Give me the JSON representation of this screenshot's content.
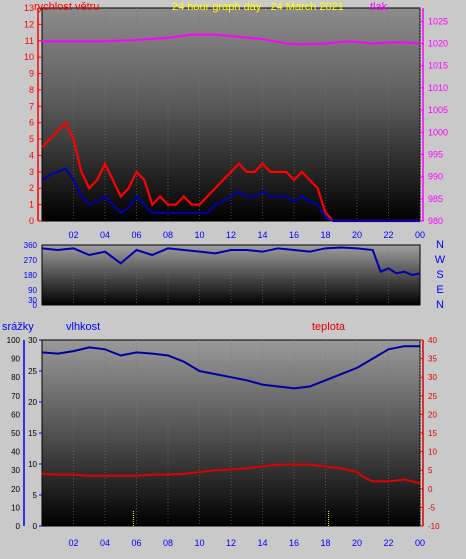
{
  "colors": {
    "wind": "#ff0000",
    "gust_line": "#ff0000",
    "pressure": "#ff00ff",
    "direction": "#0000b0",
    "humidity": "#0000a0",
    "temperature": "#e00000",
    "rain": "#0000ff",
    "title": "#ffff00",
    "label_blue": "#0000ff"
  },
  "chart_data": [
    {
      "type": "line",
      "panel": "wind-pressure",
      "title": "24 hour graph day : 24 March 2021",
      "x_ticks": [
        "02",
        "04",
        "06",
        "08",
        "10",
        "12",
        "14",
        "16",
        "18",
        "20",
        "22",
        "00"
      ],
      "x_range": [
        0,
        24
      ],
      "left_axis": {
        "label": "rychlost větru",
        "range": [
          0,
          13
        ],
        "ticks": [
          "0",
          "1",
          "2",
          "3",
          "4",
          "5",
          "6",
          "7",
          "8",
          "9",
          "10",
          "11",
          "12",
          "13"
        ]
      },
      "right_axis": {
        "label": "tlak",
        "range": [
          980,
          1028
        ],
        "ticks": [
          "980",
          "985",
          "990",
          "995",
          "1000",
          "1005",
          "1010",
          "1015",
          "1020",
          "1025"
        ]
      },
      "series": [
        {
          "name": "tlak",
          "axis": "right",
          "x": [
            0,
            2,
            4,
            6,
            8,
            9.5,
            11,
            12.5,
            14,
            15.5,
            16.5,
            18,
            19.5,
            21,
            22.5,
            24
          ],
          "y": [
            1020.5,
            1020.5,
            1020.5,
            1020.8,
            1021.3,
            1022.0,
            1022.0,
            1021.5,
            1021.0,
            1020.0,
            1019.8,
            1020.0,
            1020.5,
            1020.0,
            1020.3,
            1020.0
          ]
        },
        {
          "name": "gust",
          "axis": "left",
          "x": [
            0,
            0.5,
            1,
            1.5,
            2,
            2.5,
            3,
            3.5,
            4,
            4.5,
            5,
            5.5,
            6,
            6.5,
            7,
            7.5,
            8,
            8.5,
            9,
            9.5,
            10,
            10.5,
            11,
            11.5,
            12,
            12.5,
            13,
            13.5,
            14,
            14.5,
            15,
            15.5,
            16,
            16.5,
            17,
            17.5,
            18,
            18.5,
            19,
            19.5,
            20,
            20.5,
            21,
            21.5,
            22,
            22.5,
            23,
            23.5,
            24
          ],
          "y": [
            4.5,
            5.0,
            5.5,
            6.0,
            5.0,
            3.0,
            2.0,
            2.5,
            3.5,
            2.5,
            1.5,
            2.0,
            3.0,
            2.5,
            1.0,
            1.5,
            1.0,
            1.0,
            1.5,
            1.0,
            1.0,
            1.5,
            2.0,
            2.5,
            3.0,
            3.5,
            3.0,
            3.0,
            3.5,
            3.0,
            3.0,
            3.0,
            2.5,
            3.0,
            2.5,
            2.0,
            0.5,
            0,
            0,
            0,
            0,
            0,
            0,
            0,
            0,
            0,
            0,
            0,
            0
          ]
        },
        {
          "name": "wind",
          "axis": "left",
          "x": [
            0,
            0.5,
            1,
            1.5,
            2,
            2.5,
            3,
            3.5,
            4,
            4.5,
            5,
            5.5,
            6,
            6.5,
            7,
            7.5,
            8,
            8.5,
            9,
            9.5,
            10,
            10.5,
            11,
            11.5,
            12,
            12.5,
            13,
            13.5,
            14,
            14.5,
            15,
            15.5,
            16,
            16.5,
            17,
            17.5,
            18,
            18.5,
            19,
            19.5,
            20,
            20.5,
            21,
            21.5,
            22,
            22.5,
            23,
            23.5,
            24
          ],
          "y": [
            2.5,
            2.8,
            3.0,
            3.2,
            2.5,
            1.5,
            1.0,
            1.2,
            1.5,
            1.0,
            0.5,
            0.8,
            1.5,
            1.0,
            0.5,
            0.5,
            0.5,
            0.5,
            0.5,
            0.5,
            0.5,
            0.5,
            1.0,
            1.2,
            1.5,
            1.8,
            1.5,
            1.5,
            1.8,
            1.5,
            1.5,
            1.5,
            1.2,
            1.5,
            1.2,
            1.0,
            0.2,
            0,
            0,
            0,
            0,
            0,
            0,
            0,
            0,
            0,
            0,
            0,
            0
          ]
        }
      ]
    },
    {
      "type": "line",
      "panel": "direction",
      "x_ticks": [],
      "x_range": [
        0,
        24
      ],
      "left_axis": {
        "range": [
          0,
          360
        ],
        "ticks": [
          "0",
          "30",
          "90",
          "180",
          "270",
          "360"
        ]
      },
      "right_labels": [
        "N",
        "W",
        "S",
        "E",
        "N"
      ],
      "series": [
        {
          "name": "wind direction",
          "x": [
            0,
            1,
            2,
            3,
            4,
            5,
            6,
            7,
            8,
            9,
            10,
            11,
            12,
            13,
            14,
            15,
            16,
            17,
            18,
            19,
            20,
            21,
            21.5,
            22,
            22.5,
            23,
            23.5,
            24
          ],
          "y": [
            340,
            330,
            340,
            300,
            320,
            250,
            330,
            300,
            340,
            330,
            320,
            310,
            330,
            330,
            320,
            340,
            330,
            320,
            340,
            345,
            340,
            330,
            200,
            220,
            190,
            200,
            180,
            190
          ]
        }
      ]
    },
    {
      "type": "line",
      "panel": "rain-humidity-temperature",
      "x_ticks": [
        "02",
        "04",
        "06",
        "08",
        "10",
        "12",
        "14",
        "16",
        "18",
        "20",
        "22",
        "00"
      ],
      "x_range": [
        0,
        24
      ],
      "rain_axis": {
        "label": "srážky",
        "range": [
          0,
          100
        ],
        "ticks": [
          "0",
          "10",
          "20",
          "30",
          "40",
          "50",
          "60",
          "70",
          "80",
          "90",
          "100"
        ]
      },
      "humidity_axis": {
        "label": "vlhkost",
        "range": [
          0,
          30
        ],
        "ticks": [
          "0",
          "5",
          "10",
          "15",
          "20",
          "25",
          "30"
        ]
      },
      "temperature_axis": {
        "label": "teplota",
        "range": [
          -10,
          40
        ],
        "ticks": [
          "-10",
          "-5",
          "0",
          "5",
          "10",
          "15",
          "20",
          "25",
          "30",
          "35",
          "40"
        ]
      },
      "series": [
        {
          "name": "vlhkost",
          "axis": "humidity",
          "x": [
            0,
            1,
            2,
            3,
            4,
            5,
            6,
            7,
            8,
            9,
            10,
            11,
            12,
            13,
            14,
            15,
            16,
            17,
            18,
            19,
            20,
            21,
            22,
            23,
            24
          ],
          "y": [
            28.0,
            27.8,
            28.2,
            28.8,
            28.5,
            27.5,
            28.0,
            27.8,
            27.5,
            26.5,
            25.0,
            24.5,
            24.0,
            23.5,
            22.8,
            22.5,
            22.2,
            22.5,
            23.5,
            24.5,
            25.5,
            27.0,
            28.5,
            29.0,
            29.0
          ]
        },
        {
          "name": "teplota",
          "axis": "temperature",
          "x": [
            0,
            1,
            2,
            3,
            4,
            5,
            6,
            7,
            8,
            9,
            10,
            11,
            12,
            13,
            14,
            15,
            16,
            17,
            18,
            19,
            20,
            20.5,
            21,
            22,
            23,
            24
          ],
          "y": [
            4.0,
            3.8,
            3.8,
            3.5,
            3.5,
            3.5,
            3.5,
            3.8,
            3.8,
            4.0,
            4.5,
            5.0,
            5.2,
            5.5,
            6.0,
            6.5,
            6.5,
            6.5,
            6.0,
            5.5,
            4.5,
            3.0,
            2.0,
            2.0,
            2.5,
            1.5
          ]
        },
        {
          "name": "srážky",
          "axis": "rain",
          "x": [
            5.8,
            18.2
          ],
          "y": [
            5,
            5
          ]
        }
      ]
    }
  ]
}
